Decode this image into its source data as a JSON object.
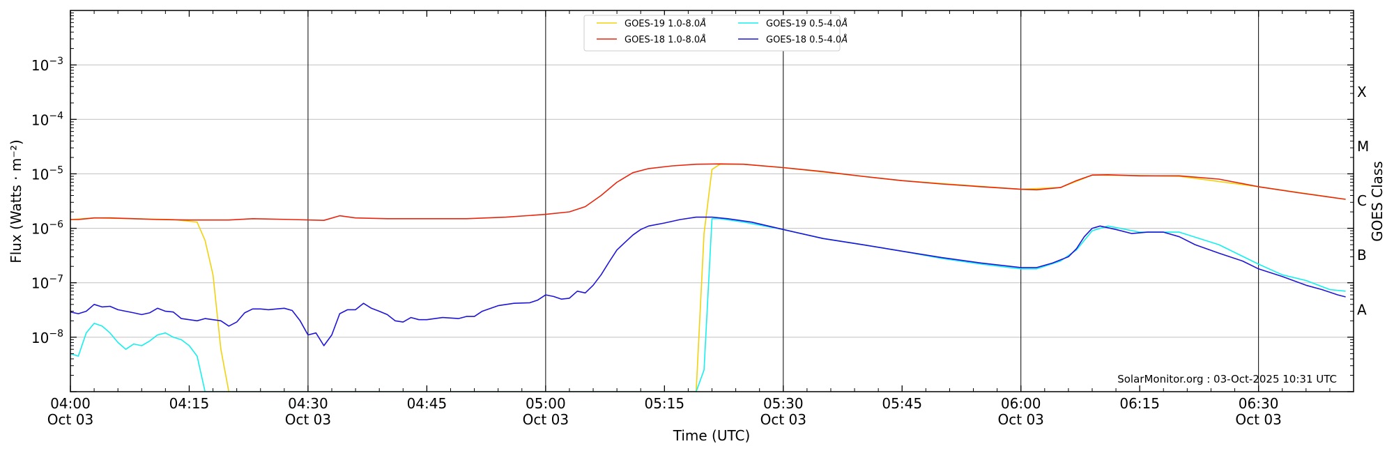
{
  "chart_data": {
    "type": "line",
    "x_unit": "time (UTC) on 03-Oct-2025",
    "xlim": [
      "04:00",
      "06:42"
    ],
    "ylim": [
      1e-09,
      0.01
    ],
    "yscale": "log",
    "xlabel": "Time (UTC)",
    "ylabel": "Flux (Watts · m⁻²)",
    "y2label": "GOES Class",
    "x_ticks": [
      {
        "t": "04:00",
        "line1": "04:00",
        "line2": "Oct 03",
        "vline": false
      },
      {
        "t": "04:15",
        "line1": "04:15",
        "line2": "",
        "vline": false
      },
      {
        "t": "04:30",
        "line1": "04:30",
        "line2": "Oct 03",
        "vline": true
      },
      {
        "t": "04:45",
        "line1": "04:45",
        "line2": "",
        "vline": false
      },
      {
        "t": "05:00",
        "line1": "05:00",
        "line2": "Oct 03",
        "vline": true
      },
      {
        "t": "05:15",
        "line1": "05:15",
        "line2": "",
        "vline": false
      },
      {
        "t": "05:30",
        "line1": "05:30",
        "line2": "Oct 03",
        "vline": true
      },
      {
        "t": "05:45",
        "line1": "05:45",
        "line2": "",
        "vline": false
      },
      {
        "t": "06:00",
        "line1": "06:00",
        "line2": "Oct 03",
        "vline": true
      },
      {
        "t": "06:15",
        "line1": "06:15",
        "line2": "",
        "vline": false
      },
      {
        "t": "06:30",
        "line1": "06:30",
        "line2": "Oct 03",
        "vline": true
      }
    ],
    "y_ticks": [
      {
        "value": 1e-08,
        "base": "10",
        "exp": "−8"
      },
      {
        "value": 1e-07,
        "base": "10",
        "exp": "−7"
      },
      {
        "value": 1e-06,
        "base": "10",
        "exp": "−6"
      },
      {
        "value": 1e-05,
        "base": "10",
        "exp": "−5"
      },
      {
        "value": 0.0001,
        "base": "10",
        "exp": "−4"
      },
      {
        "value": 0.001,
        "base": "10",
        "exp": "−3"
      }
    ],
    "class_labels": [
      {
        "label": "A",
        "value": 1e-08
      },
      {
        "label": "B",
        "value": 1e-07
      },
      {
        "label": "C",
        "value": 1e-06
      },
      {
        "label": "M",
        "value": 1e-05
      },
      {
        "label": "X",
        "value": 0.0001
      }
    ],
    "grid": "horizontal at decades; vertical at half-hours",
    "legend_position": "top-center",
    "annotation": "SolarMonitor.org : 03-Oct-2025 10:31 UTC",
    "series": [
      {
        "name": "GOES-19 1.0-8.0Å",
        "legend_label": "GOES-19 1.0-8.0",
        "color": "#f2d20b",
        "points": [
          [
            "04:00",
            1.45e-06
          ],
          [
            "04:03",
            1.55e-06
          ],
          [
            "04:08",
            1.5e-06
          ],
          [
            "04:13",
            1.45e-06
          ],
          [
            "04:16",
            1.3e-06
          ],
          [
            "04:17",
            6e-07
          ],
          [
            "04:18",
            1.4e-07
          ],
          [
            "04:19",
            6e-09
          ],
          [
            "04:20",
            1e-09
          ],
          [
            "05:19",
            1e-09
          ],
          [
            "05:20",
            8e-07
          ],
          [
            "05:21",
            1.2e-05
          ],
          [
            "05:22",
            1.5e-05
          ],
          [
            "05:25",
            1.5e-05
          ],
          [
            "05:30",
            1.3e-05
          ],
          [
            "05:45",
            7.5e-06
          ],
          [
            "06:00",
            5.2e-06
          ],
          [
            "06:05",
            5.6e-06
          ],
          [
            "06:09",
            9.5e-06
          ],
          [
            "06:15",
            9.3e-06
          ],
          [
            "06:20",
            9e-06
          ],
          [
            "06:30",
            5.8e-06
          ],
          [
            "06:41",
            3.4e-06
          ]
        ]
      },
      {
        "name": "GOES-18 1.0-8.0Å",
        "legend_label": "GOES-18 1.0-8.0",
        "color": "#e8250c",
        "points": [
          [
            "04:00",
            1.45e-06
          ],
          [
            "04:01",
            1.45e-06
          ],
          [
            "04:03",
            1.55e-06
          ],
          [
            "04:05",
            1.55e-06
          ],
          [
            "04:08",
            1.5e-06
          ],
          [
            "04:11",
            1.45e-06
          ],
          [
            "04:15",
            1.42e-06
          ],
          [
            "04:20",
            1.42e-06
          ],
          [
            "04:23",
            1.5e-06
          ],
          [
            "04:28",
            1.45e-06
          ],
          [
            "04:32",
            1.4e-06
          ],
          [
            "04:34",
            1.7e-06
          ],
          [
            "04:36",
            1.55e-06
          ],
          [
            "04:40",
            1.5e-06
          ],
          [
            "04:50",
            1.5e-06
          ],
          [
            "04:55",
            1.6e-06
          ],
          [
            "05:00",
            1.8e-06
          ],
          [
            "05:03",
            2e-06
          ],
          [
            "05:05",
            2.5e-06
          ],
          [
            "05:07",
            4e-06
          ],
          [
            "05:09",
            7e-06
          ],
          [
            "05:11",
            1.05e-05
          ],
          [
            "05:13",
            1.25e-05
          ],
          [
            "05:16",
            1.4e-05
          ],
          [
            "05:19",
            1.5e-05
          ],
          [
            "05:22",
            1.52e-05
          ],
          [
            "05:25",
            1.5e-05
          ],
          [
            "05:30",
            1.3e-05
          ],
          [
            "05:35",
            1.1e-05
          ],
          [
            "05:40",
            9e-06
          ],
          [
            "05:45",
            7.5e-06
          ],
          [
            "05:50",
            6.5e-06
          ],
          [
            "05:55",
            5.8e-06
          ],
          [
            "06:00",
            5.2e-06
          ],
          [
            "06:02",
            5.1e-06
          ],
          [
            "06:05",
            5.6e-06
          ],
          [
            "06:07",
            7.5e-06
          ],
          [
            "06:09",
            9.5e-06
          ],
          [
            "06:11",
            9.6e-06
          ],
          [
            "06:15",
            9.2e-06
          ],
          [
            "06:20",
            9.2e-06
          ],
          [
            "06:25",
            8e-06
          ],
          [
            "06:30",
            5.8e-06
          ],
          [
            "06:35",
            4.5e-06
          ],
          [
            "06:41",
            3.4e-06
          ]
        ]
      },
      {
        "name": "GOES-19 0.5-4.0Å",
        "legend_label": "GOES-19 0.5-4.0",
        "color": "#13f0ee",
        "points": [
          [
            "04:00",
            5e-09
          ],
          [
            "04:01",
            4.5e-09
          ],
          [
            "04:02",
            1.2e-08
          ],
          [
            "04:03",
            1.8e-08
          ],
          [
            "04:04",
            1.6e-08
          ],
          [
            "04:05",
            1.2e-08
          ],
          [
            "04:06",
            8e-09
          ],
          [
            "04:07",
            6e-09
          ],
          [
            "04:08",
            7.5e-09
          ],
          [
            "04:09",
            7e-09
          ],
          [
            "04:10",
            8.5e-09
          ],
          [
            "04:11",
            1.1e-08
          ],
          [
            "04:12",
            1.2e-08
          ],
          [
            "04:13",
            1e-08
          ],
          [
            "04:14",
            9e-09
          ],
          [
            "04:15",
            7e-09
          ],
          [
            "04:16",
            4.5e-09
          ],
          [
            "04:17",
            1e-09
          ],
          [
            "05:19",
            1e-09
          ],
          [
            "05:20",
            2.5e-09
          ],
          [
            "05:21",
            1.5e-06
          ],
          [
            "05:22",
            1.5e-06
          ],
          [
            "05:25",
            1.3e-06
          ],
          [
            "05:30",
            9.5e-07
          ],
          [
            "05:35",
            6.5e-07
          ],
          [
            "05:40",
            5e-07
          ],
          [
            "05:45",
            3.8e-07
          ],
          [
            "05:50",
            2.8e-07
          ],
          [
            "05:55",
            2.2e-07
          ],
          [
            "06:00",
            1.8e-07
          ],
          [
            "06:02",
            1.8e-07
          ],
          [
            "06:05",
            2.5e-07
          ],
          [
            "06:07",
            4e-07
          ],
          [
            "06:09",
            9e-07
          ],
          [
            "06:11",
            1.1e-06
          ],
          [
            "06:15",
            8.5e-07
          ],
          [
            "06:20",
            8.5e-07
          ],
          [
            "06:25",
            5e-07
          ],
          [
            "06:30",
            2.2e-07
          ],
          [
            "06:33",
            1.4e-07
          ],
          [
            "06:36",
            1.1e-07
          ],
          [
            "06:39",
            7.5e-08
          ],
          [
            "06:41",
            7e-08
          ]
        ]
      },
      {
        "name": "GOES-18 0.5-4.0Å",
        "legend_label": "GOES-18 0.5-4.0",
        "color": "#1d14d8",
        "points": [
          [
            "04:00",
            2.9e-08
          ],
          [
            "04:01",
            2.7e-08
          ],
          [
            "04:02",
            3e-08
          ],
          [
            "04:03",
            4e-08
          ],
          [
            "04:04",
            3.6e-08
          ],
          [
            "04:05",
            3.7e-08
          ],
          [
            "04:06",
            3.2e-08
          ],
          [
            "04:07",
            3e-08
          ],
          [
            "04:08",
            2.8e-08
          ],
          [
            "04:09",
            2.6e-08
          ],
          [
            "04:10",
            2.8e-08
          ],
          [
            "04:11",
            3.4e-08
          ],
          [
            "04:12",
            3e-08
          ],
          [
            "04:13",
            2.9e-08
          ],
          [
            "04:14",
            2.2e-08
          ],
          [
            "04:15",
            2.1e-08
          ],
          [
            "04:16",
            2e-08
          ],
          [
            "04:17",
            2.2e-08
          ],
          [
            "04:18",
            2.1e-08
          ],
          [
            "04:19",
            2e-08
          ],
          [
            "04:20",
            1.6e-08
          ],
          [
            "04:21",
            1.9e-08
          ],
          [
            "04:22",
            2.8e-08
          ],
          [
            "04:23",
            3.3e-08
          ],
          [
            "04:24",
            3.3e-08
          ],
          [
            "04:25",
            3.2e-08
          ],
          [
            "04:26",
            3.3e-08
          ],
          [
            "04:27",
            3.4e-08
          ],
          [
            "04:28",
            3.1e-08
          ],
          [
            "04:29",
            2e-08
          ],
          [
            "04:30",
            1.1e-08
          ],
          [
            "04:31",
            1.2e-08
          ],
          [
            "04:32",
            7e-09
          ],
          [
            "04:33",
            1.1e-08
          ],
          [
            "04:34",
            2.7e-08
          ],
          [
            "04:35",
            3.2e-08
          ],
          [
            "04:36",
            3.2e-08
          ],
          [
            "04:37",
            4.2e-08
          ],
          [
            "04:38",
            3.4e-08
          ],
          [
            "04:39",
            3e-08
          ],
          [
            "04:40",
            2.6e-08
          ],
          [
            "04:41",
            2e-08
          ],
          [
            "04:42",
            1.9e-08
          ],
          [
            "04:43",
            2.3e-08
          ],
          [
            "04:44",
            2.1e-08
          ],
          [
            "04:45",
            2.1e-08
          ],
          [
            "04:47",
            2.3e-08
          ],
          [
            "04:49",
            2.2e-08
          ],
          [
            "04:50",
            2.4e-08
          ],
          [
            "04:51",
            2.4e-08
          ],
          [
            "04:52",
            3e-08
          ],
          [
            "04:54",
            3.8e-08
          ],
          [
            "04:56",
            4.2e-08
          ],
          [
            "04:58",
            4.3e-08
          ],
          [
            "04:59",
            4.8e-08
          ],
          [
            "05:00",
            6e-08
          ],
          [
            "05:01",
            5.6e-08
          ],
          [
            "05:02",
            5e-08
          ],
          [
            "05:03",
            5.2e-08
          ],
          [
            "05:04",
            7e-08
          ],
          [
            "05:05",
            6.5e-08
          ],
          [
            "05:06",
            9e-08
          ],
          [
            "05:07",
            1.4e-07
          ],
          [
            "05:08",
            2.4e-07
          ],
          [
            "05:09",
            4e-07
          ],
          [
            "05:10",
            5.5e-07
          ],
          [
            "05:11",
            7.5e-07
          ],
          [
            "05:12",
            9.5e-07
          ],
          [
            "05:13",
            1.1e-06
          ],
          [
            "05:15",
            1.25e-06
          ],
          [
            "05:17",
            1.45e-06
          ],
          [
            "05:19",
            1.6e-06
          ],
          [
            "05:21",
            1.6e-06
          ],
          [
            "05:23",
            1.5e-06
          ],
          [
            "05:26",
            1.3e-06
          ],
          [
            "05:30",
            9.5e-07
          ],
          [
            "05:35",
            6.5e-07
          ],
          [
            "05:40",
            5e-07
          ],
          [
            "05:45",
            3.8e-07
          ],
          [
            "05:50",
            2.9e-07
          ],
          [
            "05:55",
            2.3e-07
          ],
          [
            "06:00",
            1.9e-07
          ],
          [
            "06:02",
            1.9e-07
          ],
          [
            "06:04",
            2.3e-07
          ],
          [
            "06:06",
            3e-07
          ],
          [
            "06:07",
            4.2e-07
          ],
          [
            "06:08",
            7e-07
          ],
          [
            "06:09",
            1e-06
          ],
          [
            "06:10",
            1.1e-06
          ],
          [
            "06:12",
            9.5e-07
          ],
          [
            "06:14",
            8e-07
          ],
          [
            "06:16",
            8.5e-07
          ],
          [
            "06:18",
            8.5e-07
          ],
          [
            "06:20",
            7e-07
          ],
          [
            "06:22",
            5e-07
          ],
          [
            "06:25",
            3.5e-07
          ],
          [
            "06:28",
            2.5e-07
          ],
          [
            "06:30",
            1.8e-07
          ],
          [
            "06:33",
            1.3e-07
          ],
          [
            "06:36",
            9e-08
          ],
          [
            "06:38",
            7.5e-08
          ],
          [
            "06:40",
            6e-08
          ],
          [
            "06:41",
            5.5e-08
          ]
        ]
      }
    ]
  }
}
